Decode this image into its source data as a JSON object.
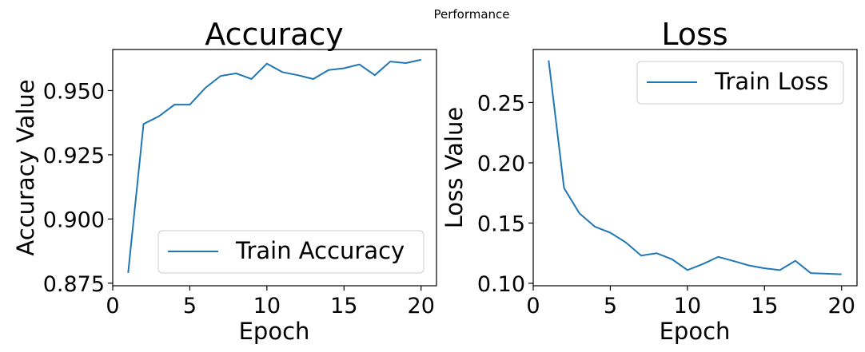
{
  "figure": {
    "suptitle": "Performance"
  },
  "chart_data": [
    {
      "type": "line",
      "title": "Accuracy",
      "xlabel": "Epoch",
      "ylabel": "Accuracy Value",
      "xlim": [
        0,
        21
      ],
      "ylim": [
        0.874,
        0.966
      ],
      "xticks": [
        0,
        5,
        10,
        15,
        20
      ],
      "xtick_labels": [
        "0",
        "5",
        "10",
        "15",
        "20"
      ],
      "yticks": [
        0.875,
        0.9,
        0.925,
        0.95
      ],
      "ytick_labels": [
        "0.875",
        "0.900",
        "0.925",
        "0.950"
      ],
      "grid": false,
      "legend": "lower right",
      "color": "#1f77b4",
      "x": [
        1,
        2,
        3,
        4,
        5,
        6,
        7,
        8,
        9,
        10,
        11,
        12,
        13,
        14,
        15,
        16,
        17,
        18,
        19,
        20
      ],
      "series": [
        {
          "name": "Train Accuracy",
          "values": [
            0.879,
            0.937,
            0.94,
            0.9445,
            0.9445,
            0.951,
            0.9557,
            0.9567,
            0.9545,
            0.9605,
            0.9572,
            0.956,
            0.9545,
            0.958,
            0.9587,
            0.9602,
            0.956,
            0.9613,
            0.9607,
            0.962
          ]
        }
      ]
    },
    {
      "type": "line",
      "title": "Loss",
      "xlabel": "Epoch",
      "ylabel": "Loss Value",
      "xlim": [
        0,
        21
      ],
      "ylim": [
        0.098,
        0.294
      ],
      "xticks": [
        0,
        5,
        10,
        15,
        20
      ],
      "xtick_labels": [
        "0",
        "5",
        "10",
        "15",
        "20"
      ],
      "yticks": [
        0.1,
        0.15,
        0.2,
        0.25
      ],
      "ytick_labels": [
        "0.10",
        "0.15",
        "0.20",
        "0.25"
      ],
      "grid": false,
      "legend": "upper right",
      "color": "#1f77b4",
      "x": [
        1,
        2,
        3,
        4,
        5,
        6,
        7,
        8,
        9,
        10,
        11,
        12,
        13,
        14,
        15,
        16,
        17,
        18,
        19,
        20
      ],
      "series": [
        {
          "name": "Train Loss",
          "values": [
            0.285,
            0.179,
            0.158,
            0.147,
            0.142,
            0.134,
            0.123,
            0.125,
            0.12,
            0.111,
            0.116,
            0.122,
            0.1185,
            0.1148,
            0.1125,
            0.111,
            0.1187,
            0.1085,
            0.108,
            0.1075
          ]
        }
      ]
    }
  ]
}
